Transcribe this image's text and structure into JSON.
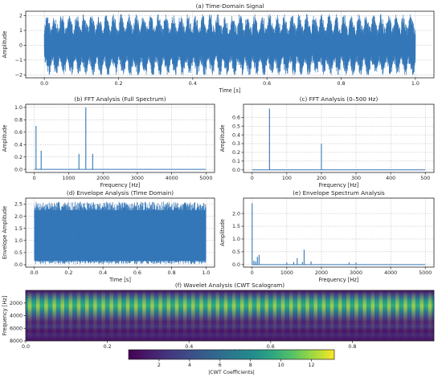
{
  "chart_data": [
    {
      "id": "a",
      "type": "line",
      "title": "(a) Time-Domain Signal",
      "xlabel": "Time [s]",
      "ylabel": "Amplitude",
      "xlim": [
        -0.05,
        1.05
      ],
      "ylim": [
        -2.2,
        2.3
      ],
      "xticks": [
        0.0,
        0.2,
        0.4,
        0.6,
        0.8,
        1.0
      ],
      "xtick_labels": [
        "0.0",
        "0.2",
        "0.4",
        "0.6",
        "0.8",
        "1.0"
      ],
      "yticks": [
        -2,
        -1,
        0,
        1,
        2
      ],
      "ytick_labels": [
        "−2",
        "−1",
        "0",
        "1",
        "2"
      ],
      "grid": true,
      "color": "#3477b8",
      "signal": {
        "x_range": [
          0,
          1
        ],
        "envelope_cycles": 50,
        "min": -2.0,
        "max": 2.1
      }
    },
    {
      "id": "b",
      "type": "line",
      "title": "(b) FFT Analysis (Full Spectrum)",
      "xlabel": "Frequency [Hz]",
      "ylabel": "Amplitude",
      "xlim": [
        -250,
        5250
      ],
      "ylim": [
        -0.05,
        1.05
      ],
      "xticks": [
        0,
        1000,
        2000,
        3000,
        4000,
        5000
      ],
      "xtick_labels": [
        "0",
        "1000",
        "2000",
        "3000",
        "4000",
        "5000"
      ],
      "yticks": [
        0.0,
        0.2,
        0.4,
        0.6,
        0.8,
        1.0
      ],
      "ytick_labels": [
        "0.0",
        "0.2",
        "0.4",
        "0.6",
        "0.8",
        "1.0"
      ],
      "grid": true,
      "color": "#3477b8",
      "peaks": [
        {
          "x": 50,
          "y": 0.7
        },
        {
          "x": 200,
          "y": 0.3
        },
        {
          "x": 1300,
          "y": 0.25
        },
        {
          "x": 1500,
          "y": 1.0
        },
        {
          "x": 1700,
          "y": 0.25
        }
      ]
    },
    {
      "id": "c",
      "type": "line",
      "title": "(c) FFT Analysis (0–500 Hz)",
      "xlabel": "Frequency [Hz]",
      "ylabel": "Amplitude",
      "xlim": [
        -25,
        525
      ],
      "ylim": [
        -0.03,
        0.75
      ],
      "xticks": [
        0,
        100,
        200,
        300,
        400,
        500
      ],
      "xtick_labels": [
        "0",
        "100",
        "200",
        "300",
        "400",
        "500"
      ],
      "yticks": [
        0.0,
        0.1,
        0.2,
        0.3,
        0.4,
        0.5,
        0.6
      ],
      "ytick_labels": [
        "0.0",
        "0.1",
        "0.2",
        "0.3",
        "0.4",
        "0.5",
        "0.6"
      ],
      "grid": true,
      "color": "#3477b8",
      "peaks": [
        {
          "x": 50,
          "y": 0.7
        },
        {
          "x": 200,
          "y": 0.3
        }
      ]
    },
    {
      "id": "d",
      "type": "line",
      "title": "(d) Envelope Analysis (Time Domain)",
      "xlabel": "Time [s]",
      "ylabel": "Envelope Amplitude",
      "xlim": [
        -0.05,
        1.05
      ],
      "ylim": [
        -0.1,
        2.75
      ],
      "xticks": [
        0.0,
        0.2,
        0.4,
        0.6,
        0.8,
        1.0
      ],
      "xtick_labels": [
        "0.0",
        "0.2",
        "0.4",
        "0.6",
        "0.8",
        "1.0"
      ],
      "yticks": [
        0.0,
        0.5,
        1.0,
        1.5,
        2.0,
        2.5
      ],
      "ytick_labels": [
        "0.0",
        "0.5",
        "1.0",
        "1.5",
        "2.0",
        "2.5"
      ],
      "grid": true,
      "color": "#3477b8",
      "signal": {
        "x_range": [
          0,
          1
        ],
        "min": 0.0,
        "max": 2.6
      }
    },
    {
      "id": "e",
      "type": "line",
      "title": "(e) Envelope Spectrum Analysis",
      "xlabel": "Frequency [Hz]",
      "ylabel": "Amplitude",
      "xlim": [
        -250,
        5250
      ],
      "ylim": [
        -0.1,
        2.6
      ],
      "xticks": [
        0,
        1000,
        2000,
        3000,
        4000,
        5000
      ],
      "xtick_labels": [
        "0",
        "1000",
        "2000",
        "3000",
        "4000",
        "5000"
      ],
      "yticks": [
        0.0,
        0.5,
        1.0,
        1.5,
        2.0
      ],
      "ytick_labels": [
        "0.0",
        "0.5",
        "1.0",
        "1.5",
        "2.0"
      ],
      "grid": true,
      "color": "#3477b8",
      "peaks": [
        {
          "x": 0,
          "y": 2.4
        },
        {
          "x": 50,
          "y": 0.15
        },
        {
          "x": 100,
          "y": 0.12
        },
        {
          "x": 150,
          "y": 0.3
        },
        {
          "x": 200,
          "y": 0.38
        },
        {
          "x": 1000,
          "y": 0.08
        },
        {
          "x": 1200,
          "y": 0.1
        },
        {
          "x": 1300,
          "y": 0.25
        },
        {
          "x": 1450,
          "y": 0.1
        },
        {
          "x": 1500,
          "y": 0.58
        },
        {
          "x": 1700,
          "y": 0.12
        },
        {
          "x": 2800,
          "y": 0.08
        },
        {
          "x": 3000,
          "y": 0.08
        }
      ]
    },
    {
      "id": "f",
      "type": "heatmap",
      "title": "(f) Wavelet Analysis (CWT Scalogram)",
      "xlabel": "Time [s]",
      "ylabel": "Frequency [Hz]",
      "xlim": [
        0.0,
        1.0
      ],
      "ylim": [
        8000,
        0
      ],
      "xticks": [
        0.0,
        0.2,
        0.4,
        0.6,
        0.8
      ],
      "xtick_labels": [
        "0.0",
        "0.2",
        "0.4",
        "0.6",
        "0.8"
      ],
      "yticks": [
        2000,
        4000,
        6000,
        8000
      ],
      "ytick_labels": [
        "2000",
        "4000",
        "6000",
        "8000"
      ],
      "colormap": "viridis",
      "colorbar": {
        "label": "|CWT Coefficients|",
        "range": [
          0,
          13.5
        ],
        "ticks": [
          2,
          4,
          6,
          8,
          10,
          12
        ],
        "tick_labels": [
          "2",
          "4",
          "6",
          "8",
          "10",
          "12"
        ]
      },
      "pulse_count": 50
    }
  ]
}
